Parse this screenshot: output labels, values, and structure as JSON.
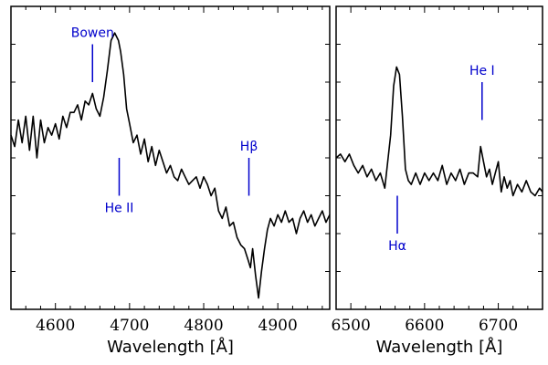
{
  "chart_data": [
    {
      "type": "line",
      "xlabel": "Wavelength [Å]",
      "ylabel": "",
      "xlim": [
        4540,
        4970
      ],
      "ylim": [
        0,
        8
      ],
      "xticks": [
        4600,
        4700,
        4800,
        4900
      ],
      "xtick_labels": [
        "4600",
        "4700",
        "4800",
        "4900"
      ],
      "series": [
        {
          "name": "spectrum-left",
          "x": [
            4540,
            4545,
            4550,
            4555,
            4560,
            4565,
            4570,
            4575,
            4580,
            4585,
            4590,
            4595,
            4600,
            4605,
            4610,
            4615,
            4620,
            4625,
            4630,
            4635,
            4640,
            4645,
            4650,
            4655,
            4660,
            4665,
            4670,
            4675,
            4680,
            4685,
            4688,
            4692,
            4696,
            4700,
            4705,
            4710,
            4715,
            4720,
            4725,
            4730,
            4735,
            4740,
            4745,
            4750,
            4755,
            4760,
            4765,
            4770,
            4775,
            4780,
            4785,
            4790,
            4795,
            4800,
            4805,
            4810,
            4815,
            4820,
            4825,
            4830,
            4835,
            4840,
            4845,
            4850,
            4855,
            4860,
            4863,
            4866,
            4870,
            4874,
            4878,
            4882,
            4886,
            4890,
            4895,
            4900,
            4905,
            4910,
            4915,
            4920,
            4925,
            4930,
            4935,
            4940,
            4945,
            4950,
            4955,
            4960,
            4965,
            4970
          ],
          "values": [
            4.6,
            4.3,
            5.0,
            4.4,
            5.1,
            4.2,
            5.1,
            4.0,
            5.0,
            4.4,
            4.8,
            4.6,
            4.9,
            4.5,
            5.1,
            4.8,
            5.2,
            5.2,
            5.4,
            5.0,
            5.5,
            5.4,
            5.7,
            5.3,
            5.1,
            5.6,
            6.3,
            7.1,
            7.3,
            7.1,
            6.8,
            6.2,
            5.3,
            4.9,
            4.4,
            4.6,
            4.1,
            4.5,
            3.9,
            4.3,
            3.8,
            4.2,
            3.9,
            3.6,
            3.8,
            3.5,
            3.4,
            3.7,
            3.5,
            3.3,
            3.4,
            3.5,
            3.2,
            3.5,
            3.3,
            3.0,
            3.2,
            2.6,
            2.4,
            2.7,
            2.2,
            2.3,
            1.9,
            1.7,
            1.6,
            1.3,
            1.1,
            1.6,
            0.9,
            0.3,
            1.0,
            1.6,
            2.1,
            2.4,
            2.2,
            2.5,
            2.3,
            2.6,
            2.3,
            2.4,
            2.0,
            2.4,
            2.6,
            2.3,
            2.5,
            2.2,
            2.4,
            2.6,
            2.3,
            2.5
          ]
        }
      ],
      "annotations": [
        {
          "label": "Bowen",
          "x": 4650,
          "y1": 6.0,
          "y2": 7.0,
          "text_above": true
        },
        {
          "label": "He II",
          "x": 4686,
          "y1": 3.0,
          "y2": 4.0,
          "text_above": false
        },
        {
          "label": "Hβ",
          "x": 4861,
          "y1": 3.0,
          "y2": 4.0,
          "text_above": true
        }
      ]
    },
    {
      "type": "line",
      "xlabel": "Wavelength [Å]",
      "ylabel": "",
      "xlim": [
        6480,
        6760
      ],
      "ylim": [
        0,
        8
      ],
      "xticks": [
        6500,
        6600,
        6700
      ],
      "xtick_labels": [
        "6500",
        "6600",
        "6700"
      ],
      "series": [
        {
          "name": "spectrum-right",
          "x": [
            6480,
            6486,
            6492,
            6498,
            6504,
            6510,
            6516,
            6522,
            6528,
            6534,
            6540,
            6546,
            6550,
            6554,
            6558,
            6562,
            6566,
            6570,
            6574,
            6578,
            6582,
            6588,
            6594,
            6600,
            6606,
            6612,
            6618,
            6624,
            6630,
            6636,
            6642,
            6648,
            6654,
            6660,
            6666,
            6672,
            6676,
            6680,
            6684,
            6688,
            6692,
            6696,
            6700,
            6704,
            6708,
            6712,
            6716,
            6720,
            6726,
            6732,
            6738,
            6744,
            6750,
            6756,
            6760
          ],
          "values": [
            4.0,
            4.1,
            3.9,
            4.1,
            3.8,
            3.6,
            3.8,
            3.5,
            3.7,
            3.4,
            3.6,
            3.2,
            3.9,
            4.6,
            5.9,
            6.4,
            6.2,
            5.1,
            3.7,
            3.4,
            3.3,
            3.6,
            3.3,
            3.6,
            3.4,
            3.6,
            3.4,
            3.8,
            3.3,
            3.6,
            3.4,
            3.7,
            3.3,
            3.6,
            3.6,
            3.5,
            4.3,
            3.9,
            3.5,
            3.7,
            3.3,
            3.6,
            3.9,
            3.1,
            3.5,
            3.2,
            3.4,
            3.0,
            3.3,
            3.1,
            3.4,
            3.1,
            3.0,
            3.2,
            3.1
          ]
        }
      ],
      "annotations": [
        {
          "label": "Hα",
          "x": 6563,
          "y1": 2.0,
          "y2": 3.0,
          "text_above": false
        },
        {
          "label": "He I",
          "x": 6678,
          "y1": 5.0,
          "y2": 6.0,
          "text_above": true
        }
      ]
    }
  ]
}
